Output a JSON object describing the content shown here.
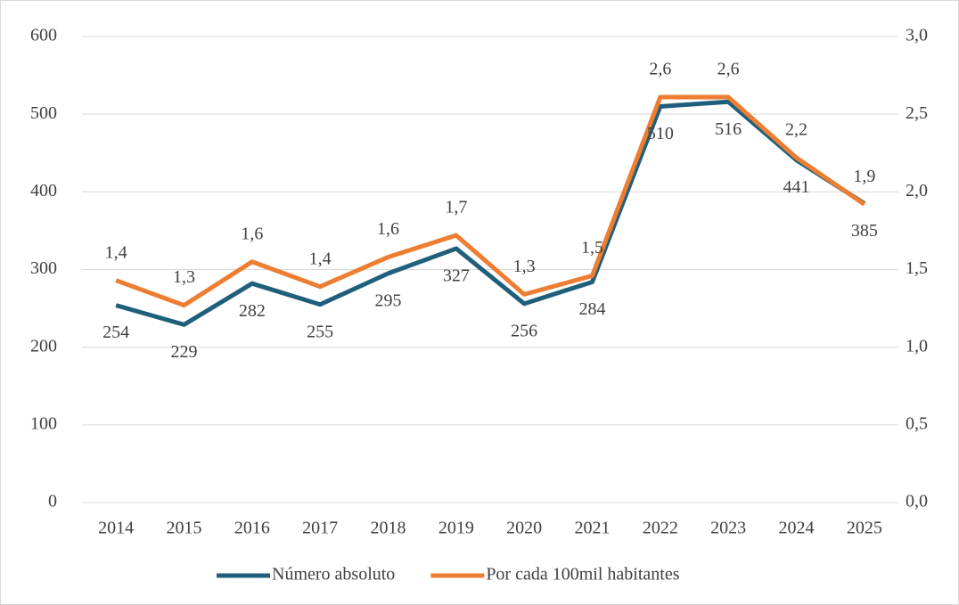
{
  "chart_data": {
    "type": "line",
    "categories": [
      "2014",
      "2015",
      "2016",
      "2017",
      "2018",
      "2019",
      "2020",
      "2021",
      "2022",
      "2023",
      "2024",
      "2025"
    ],
    "series": [
      {
        "name": "Número absoluto",
        "color": "#1f5f7b",
        "values": [
          254,
          229,
          282,
          255,
          295,
          327,
          256,
          284,
          510,
          516,
          441,
          385
        ]
      },
      {
        "name": "Por cada 100mil habitantes",
        "color": "#ed7d31",
        "axis": "y2",
        "values": [
          1.43,
          1.27,
          1.55,
          1.39,
          1.58,
          1.72,
          1.34,
          1.46,
          2.61,
          2.61,
          2.22,
          1.92
        ],
        "value_labels": [
          "1,4",
          "1,3",
          "1,6",
          "1,4",
          "1,6",
          "1,7",
          "1,3",
          "1,5",
          "2,6",
          "2,6",
          "2,2",
          "1,9"
        ]
      }
    ],
    "ylim": [
      0,
      600
    ],
    "yticks": [
      0,
      100,
      200,
      300,
      400,
      500,
      600
    ],
    "y2lim": [
      0,
      3
    ],
    "y2ticks": [
      {
        "value": 0,
        "label": "0,0"
      },
      {
        "value": 0.5,
        "label": "0,5"
      },
      {
        "value": 1,
        "label": "1,0"
      },
      {
        "value": 1.5,
        "label": "1,5"
      },
      {
        "value": 2,
        "label": "2,0"
      },
      {
        "value": 2.5,
        "label": "2,5"
      },
      {
        "value": 3,
        "label": "3,0"
      }
    ],
    "grid": true,
    "legend": "bottom"
  }
}
